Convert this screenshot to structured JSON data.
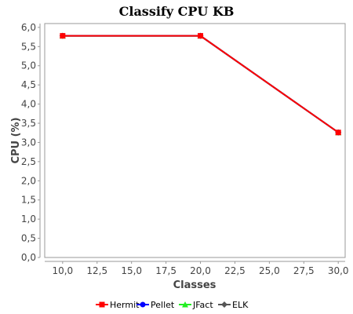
{
  "chart_data": {
    "type": "line",
    "title": "Classify CPU KB",
    "xlabel": "Classes",
    "ylabel": "CPU (%)",
    "xlim": [
      8.7,
      30.5
    ],
    "ylim": [
      0,
      6.1
    ],
    "x_ticks": [
      "10,0",
      "12,5",
      "15,0",
      "17,5",
      "20,0",
      "22,5",
      "25,0",
      "27,5",
      "30,0"
    ],
    "x_tick_values": [
      10,
      12.5,
      15,
      17.5,
      20,
      22.5,
      25,
      27.5,
      30
    ],
    "y_ticks": [
      "0,0",
      "0,5",
      "1,0",
      "1,5",
      "2,0",
      "2,5",
      "3,0",
      "3,5",
      "4,0",
      "4,5",
      "5,0",
      "5,5",
      "6,0"
    ],
    "y_tick_values": [
      0,
      0.5,
      1,
      1.5,
      2,
      2.5,
      3,
      3.5,
      4,
      4.5,
      5,
      5.5,
      6
    ],
    "grid": false,
    "legend_position": "bottom",
    "series": [
      {
        "name": "ELK",
        "color": "#555555",
        "marker": "diamond",
        "x": [
          10,
          20,
          30
        ],
        "y": [
          5.78,
          5.78,
          3.26
        ]
      },
      {
        "name": "JFact",
        "color": "#22ee22",
        "marker": "triangle",
        "x": [
          10,
          20,
          30
        ],
        "y": [
          5.78,
          5.78,
          3.26
        ]
      },
      {
        "name": "Pellet",
        "color": "#0000ff",
        "marker": "circle",
        "x": [
          10,
          20,
          30
        ],
        "y": [
          5.78,
          5.78,
          3.26
        ]
      },
      {
        "name": "Hermit",
        "color": "#ff0000",
        "marker": "square",
        "x": [
          10,
          20,
          30
        ],
        "y": [
          5.78,
          5.78,
          3.26
        ]
      }
    ],
    "legend": [
      {
        "name": "Hermit",
        "color": "#ff0000",
        "marker": "square"
      },
      {
        "name": "Pellet",
        "color": "#0000ff",
        "marker": "circle"
      },
      {
        "name": "JFact",
        "color": "#22ee22",
        "marker": "triangle"
      },
      {
        "name": "ELK",
        "color": "#555555",
        "marker": "diamond"
      }
    ]
  }
}
